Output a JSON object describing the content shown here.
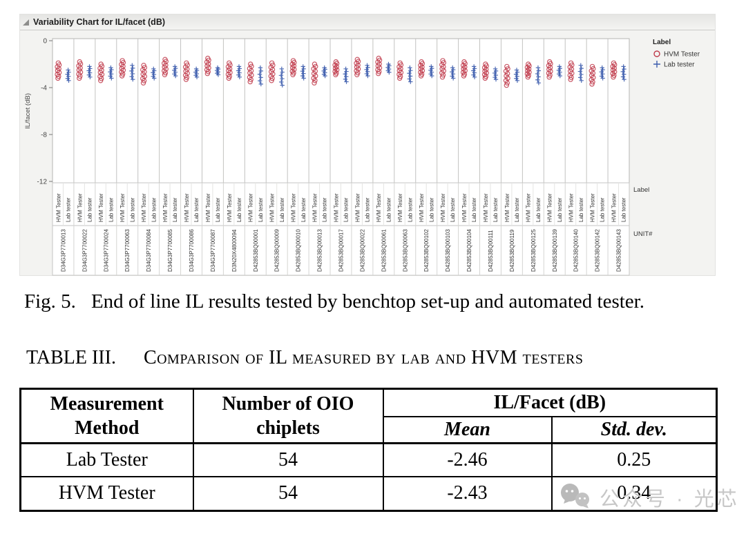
{
  "chart": {
    "title": "Variability Chart for IL/facet (dB)"
  },
  "chart_data": {
    "type": "scatter",
    "title": "Variability Chart for IL/facet (dB)",
    "ylabel": "IL/facet (dB)",
    "ylim": [
      0,
      -13
    ],
    "yticks": [
      0,
      -4,
      -8,
      -12
    ],
    "grid": false,
    "legend_title": "Label",
    "legend_position": "right-top",
    "series_axis_label": "Label",
    "group_axis_label": "UNIT#",
    "series": [
      {
        "name": "HVM Tester",
        "marker": "open-circle",
        "color": "#bf3a4a"
      },
      {
        "name": "Lab tester",
        "marker": "plus",
        "color": "#3c5cad"
      }
    ],
    "units": [
      {
        "id": "D34G3P7700013",
        "hvm_range": [
          -1.9,
          -3.2
        ],
        "lab_range": [
          -2.5,
          -3.4
        ]
      },
      {
        "id": "D34G3P7700022",
        "hvm_range": [
          -1.8,
          -3.2
        ],
        "lab_range": [
          -2.2,
          -3.1
        ]
      },
      {
        "id": "D34G3P7700024",
        "hvm_range": [
          -2.0,
          -3.4
        ],
        "lab_range": [
          -2.3,
          -3.2
        ]
      },
      {
        "id": "D34G3P7700063",
        "hvm_range": [
          -1.7,
          -3.0
        ],
        "lab_range": [
          -2.1,
          -3.3
        ]
      },
      {
        "id": "D34G3P7700084",
        "hvm_range": [
          -2.1,
          -3.6
        ],
        "lab_range": [
          -2.4,
          -3.2
        ]
      },
      {
        "id": "D34G3P7700085",
        "hvm_range": [
          -1.6,
          -2.9
        ],
        "lab_range": [
          -2.2,
          -3.0
        ]
      },
      {
        "id": "D34G3P7700086",
        "hvm_range": [
          -1.9,
          -3.3
        ],
        "lab_range": [
          -2.4,
          -3.1
        ]
      },
      {
        "id": "D34G3P7700087",
        "hvm_range": [
          -1.5,
          -2.8
        ],
        "lab_range": [
          -2.3,
          -2.9
        ]
      },
      {
        "id": "D3N20X4800094",
        "hvm_range": [
          -1.9,
          -3.2
        ],
        "lab_range": [
          -2.2,
          -3.1
        ]
      },
      {
        "id": "D42853BQ00001",
        "hvm_range": [
          -2.0,
          -3.5
        ],
        "lab_range": [
          -2.3,
          -3.7
        ]
      },
      {
        "id": "D42853BQ00009",
        "hvm_range": [
          -1.9,
          -3.4
        ],
        "lab_range": [
          -2.4,
          -3.8
        ]
      },
      {
        "id": "D42853BQ00010",
        "hvm_range": [
          -1.7,
          -2.9
        ],
        "lab_range": [
          -2.2,
          -3.2
        ]
      },
      {
        "id": "D42853BQ00013",
        "hvm_range": [
          -2.0,
          -3.6
        ],
        "lab_range": [
          -2.3,
          -3.0
        ]
      },
      {
        "id": "D42853BQ00017",
        "hvm_range": [
          -1.8,
          -2.9
        ],
        "lab_range": [
          -2.4,
          -3.5
        ]
      },
      {
        "id": "D42853BQ00022",
        "hvm_range": [
          -1.6,
          -2.9
        ],
        "lab_range": [
          -2.1,
          -3.0
        ]
      },
      {
        "id": "D42853BQ00061",
        "hvm_range": [
          -1.5,
          -2.8
        ],
        "lab_range": [
          -2.0,
          -2.7
        ]
      },
      {
        "id": "D42853BQ00063",
        "hvm_range": [
          -1.9,
          -3.2
        ],
        "lab_range": [
          -2.3,
          -3.5
        ]
      },
      {
        "id": "D42853BQ00102",
        "hvm_range": [
          -1.8,
          -3.0
        ],
        "lab_range": [
          -2.2,
          -3.0
        ]
      },
      {
        "id": "D42853BQ00103",
        "hvm_range": [
          -1.7,
          -3.1
        ],
        "lab_range": [
          -2.3,
          -3.2
        ]
      },
      {
        "id": "D42853BQ00104",
        "hvm_range": [
          -1.8,
          -3.0
        ],
        "lab_range": [
          -2.2,
          -3.1
        ]
      },
      {
        "id": "D42853BQ00111",
        "hvm_range": [
          -2.0,
          -3.2
        ],
        "lab_range": [
          -2.4,
          -3.3
        ]
      },
      {
        "id": "D42853BQ00119",
        "hvm_range": [
          -2.2,
          -3.8
        ],
        "lab_range": [
          -2.5,
          -3.4
        ]
      },
      {
        "id": "D42853BQ00125",
        "hvm_range": [
          -2.0,
          -3.1
        ],
        "lab_range": [
          -2.3,
          -3.6
        ]
      },
      {
        "id": "D42853BQ00139",
        "hvm_range": [
          -1.8,
          -3.1
        ],
        "lab_range": [
          -2.2,
          -3.0
        ]
      },
      {
        "id": "D42853BQ00140",
        "hvm_range": [
          -1.9,
          -3.3
        ],
        "lab_range": [
          -2.1,
          -3.4
        ]
      },
      {
        "id": "D42853BQ00142",
        "hvm_range": [
          -2.2,
          -3.7
        ],
        "lab_range": [
          -2.3,
          -3.2
        ]
      },
      {
        "id": "D42853BQ00143",
        "hvm_range": [
          -1.9,
          -3.1
        ],
        "lab_range": [
          -2.2,
          -3.3
        ]
      }
    ]
  },
  "figure": {
    "label": "Fig. 5.",
    "caption": "End of line IL results tested by benchtop set-up and automated tester."
  },
  "table_heading": {
    "label": "TABLE III.",
    "title": "Comparison of IL measured by lab and HVM testers"
  },
  "table": {
    "col1_header": "Measurement\nMethod",
    "col2_header": "Number of OIO\nchiplets",
    "group_header": "IL/Facet (dB)",
    "sub_headers": [
      "Mean",
      "Std. dev."
    ],
    "rows": [
      {
        "method": "Lab Tester",
        "n": "54",
        "mean": "-2.46",
        "std": "0.25"
      },
      {
        "method": "HVM Tester",
        "n": "54",
        "mean": "-2.43",
        "std": "0.34"
      }
    ]
  },
  "watermark": {
    "text": "公众号 · 光芯"
  }
}
